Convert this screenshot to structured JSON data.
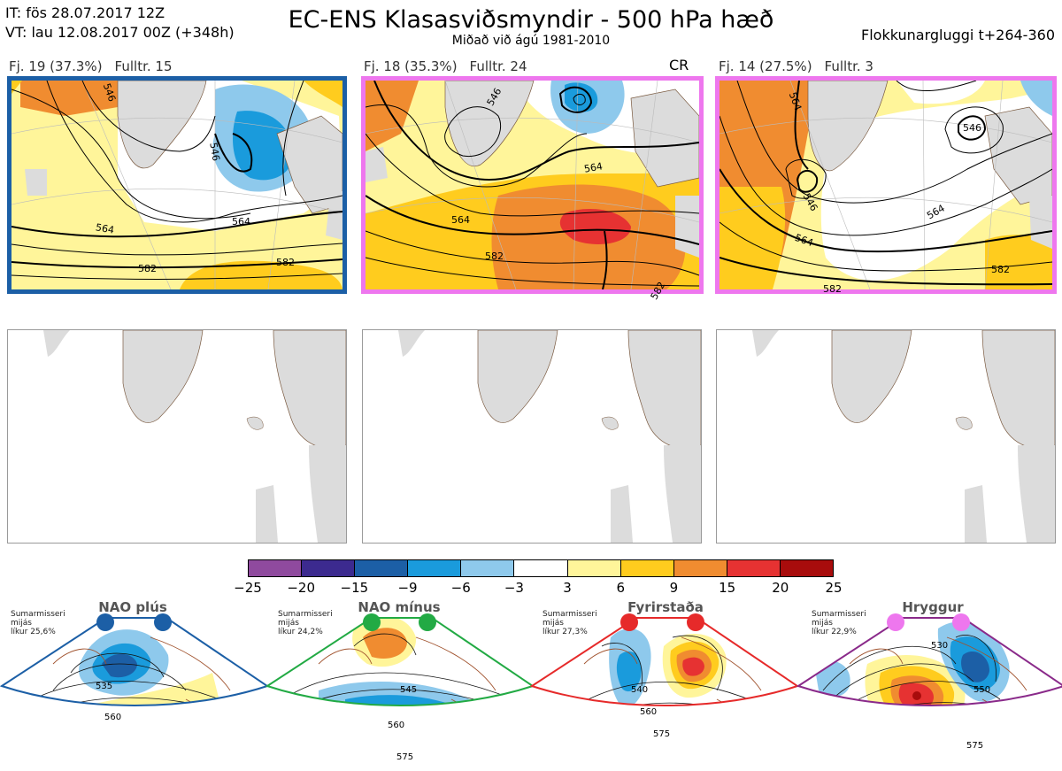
{
  "header": {
    "it": "IT: fös 28.07.2017 12Z",
    "vt": "VT: lau 12.08.2017 00Z  (+348h)",
    "title": "EC-ENS Klasasviðsmyndir - 500 hPa hæð",
    "subtitle": "Miðað við ágú 1981-2010",
    "window": "Flokkunargluggi t+264-360"
  },
  "panels": [
    {
      "cluster": "Fj. 19 (37.3%)",
      "members": "Fulltr. 15",
      "frame_color": "#1c5fa6",
      "badge": "",
      "contour_labels": [
        "546",
        "546",
        "564",
        "564",
        "582",
        "582"
      ]
    },
    {
      "cluster": "Fj. 18 (35.3%)",
      "members": "Fulltr. 24",
      "frame_color": "#ee77ee",
      "badge": "CR",
      "contour_labels": [
        "546",
        "564",
        "564",
        "582",
        "582"
      ]
    },
    {
      "cluster": "Fj. 14 (27.5%)",
      "members": "Fulltr. 3",
      "frame_color": "#ee77ee",
      "badge": "",
      "contour_labels": [
        "564",
        "546",
        "546",
        "564",
        "564",
        "582",
        "582"
      ]
    }
  ],
  "colorbar": {
    "ticks": [
      "−25",
      "−20",
      "−15",
      "−9",
      "−6",
      "−3",
      "3",
      "6",
      "9",
      "15",
      "20",
      "25"
    ],
    "colors": [
      "#8f4a9e",
      "#3c2a8f",
      "#1c5fa6",
      "#1a9bdc",
      "#8ec9ec",
      "#ffffff",
      "#fff59a",
      "#ffcc1e",
      "#f08c30",
      "#e63232",
      "#a80c0c"
    ]
  },
  "regimes": [
    {
      "name": "NAO plús",
      "season": "Sumarmisseri",
      "freq_label": "mijás",
      "prob": "líkur 25,6%",
      "color": "#1c5fa6",
      "contour_labels": [
        "535",
        "560"
      ]
    },
    {
      "name": "NAO mínus",
      "season": "Sumarmisseri",
      "freq_label": "mijás",
      "prob": "líkur 24,2%",
      "color": "#22aa44",
      "contour_labels": [
        "545",
        "560",
        "575"
      ]
    },
    {
      "name": "Fyrirstaða",
      "season": "Sumarmisseri",
      "freq_label": "mijás",
      "prob": "líkur 27,3%",
      "color": "#e62a2a",
      "contour_labels": [
        "540",
        "560",
        "575"
      ]
    },
    {
      "name": "Hryggur",
      "season": "Sumarmisseri",
      "freq_label": "mijás",
      "prob": "líkur 22,9%",
      "color": "#ee77ee",
      "contour_labels": [
        "530",
        "550",
        "575"
      ]
    }
  ]
}
